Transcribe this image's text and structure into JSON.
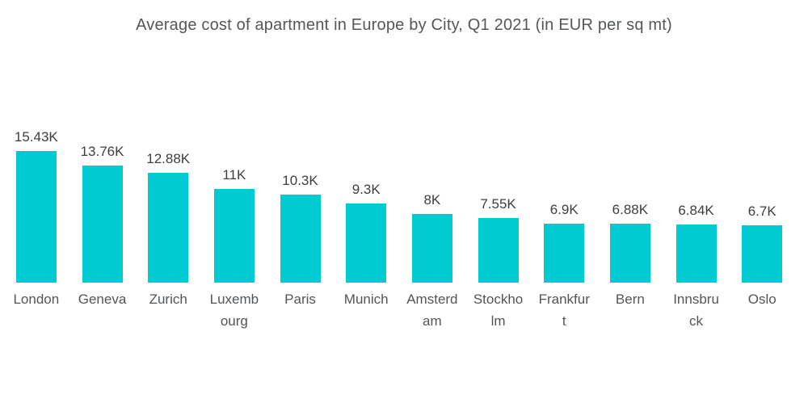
{
  "title": "Average cost of apartment in Europe by City, Q1 2021 (in EUR per sq mt)",
  "colors": {
    "background": "#FFFFFF",
    "bar": "#00CAD2",
    "title_text": "#54575A",
    "value_label_text": "#3C3E40",
    "category_label_text": "#525558"
  },
  "chart_data": {
    "type": "bar",
    "title": "Average cost of apartment in Europe by City, Q1 2021 (in EUR per sq mt)",
    "xlabel": "",
    "ylabel": "",
    "categories": [
      "London",
      "Geneva",
      "Zurich",
      "Luxembourg",
      "Paris",
      "Munich",
      "Amsterdam",
      "Stockholm",
      "Frankfurt",
      "Bern",
      "Innsbruck",
      "Oslo"
    ],
    "category_display": [
      "London",
      "Geneva",
      "Zurich",
      "Luxemb\nourg",
      "Paris",
      "Munich",
      "Amsterd\nam",
      "Stockho\nlm",
      "Frankfur\nt",
      "Bern",
      "Innsbru\nck",
      "Oslo"
    ],
    "values": [
      15.43,
      13.76,
      12.88,
      11,
      10.3,
      9.3,
      8,
      7.55,
      6.9,
      6.88,
      6.84,
      6.7
    ],
    "value_labels": [
      "15.43K",
      "13.76K",
      "12.88K",
      "11K",
      "10.3K",
      "9.3K",
      "8K",
      "7.55K",
      "6.9K",
      "6.88K",
      "6.84K",
      "6.7K"
    ],
    "values_unit": "thousand EUR per sq mt",
    "ylim": [
      0,
      15.43
    ],
    "grid": false,
    "legend": false,
    "bar_color": "#00CAD2",
    "data_labels_position": "above-bars",
    "axis_lines": false
  }
}
